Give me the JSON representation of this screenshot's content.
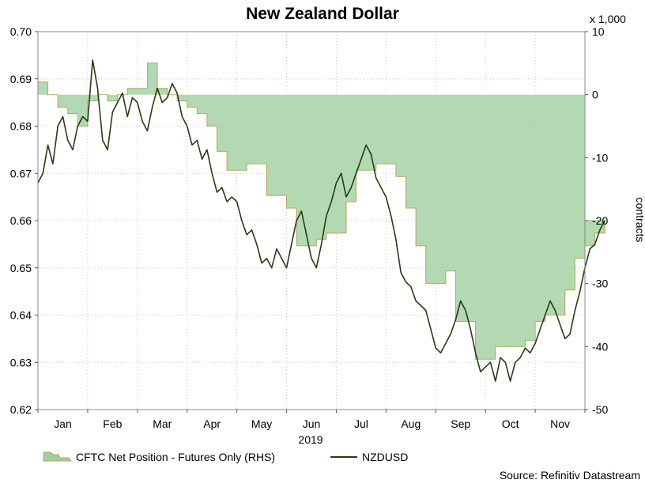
{
  "chart_data": {
    "type": "line",
    "title": "New Zealand Dollar",
    "year_label": "2019",
    "x_categories": [
      "Jan",
      "Feb",
      "Mar",
      "Apr",
      "May",
      "Jun",
      "Jul",
      "Aug",
      "Sep",
      "Oct",
      "Nov"
    ],
    "y_left": {
      "label": "",
      "ylim": [
        0.62,
        0.7
      ],
      "ticks": [
        "0.70",
        "0.69",
        "0.68",
        "0.67",
        "0.66",
        "0.65",
        "0.64",
        "0.63",
        "0.62"
      ]
    },
    "y_right": {
      "label": "contracts",
      "multiplier_label": "x 1,000",
      "ylim": [
        -50,
        10
      ],
      "ticks": [
        "10",
        "0",
        "-10",
        "-20",
        "-30",
        "-40",
        "-50"
      ]
    },
    "grid": true,
    "legend_position": "bottom-left",
    "source": "Source: Refinitiv Datastream",
    "series": [
      {
        "name": "CFTC Net Position - Futures Only (RHS)",
        "axis": "right",
        "chart_type": "area-step",
        "color": "#9fcf9f",
        "edge_color": "#b4a85a",
        "x": [
          0,
          0.2,
          0.4,
          0.6,
          0.8,
          1.0,
          1.2,
          1.4,
          1.6,
          1.8,
          2.0,
          2.2,
          2.4,
          2.6,
          2.8,
          3.0,
          3.2,
          3.4,
          3.6,
          3.8,
          4.0,
          4.2,
          4.4,
          4.6,
          4.8,
          5.0,
          5.2,
          5.4,
          5.6,
          5.8,
          6.0,
          6.2,
          6.4,
          6.6,
          6.8,
          7.0,
          7.2,
          7.4,
          7.6,
          7.8,
          8.0,
          8.2,
          8.4,
          8.6,
          8.8,
          9.0,
          9.2,
          9.4,
          9.6,
          9.8,
          10.0,
          10.2,
          10.4,
          10.6,
          10.8,
          11.0,
          11.2,
          11.4
        ],
        "values": [
          2,
          0,
          -2,
          -3,
          -5,
          -1,
          0,
          -1,
          0,
          1,
          1,
          5,
          1,
          0,
          -1,
          -2,
          -3,
          -5,
          -9,
          -12,
          -12,
          -11,
          -11,
          -16,
          -16,
          -18,
          -24,
          -24,
          -23,
          -22,
          -22,
          -17,
          -12,
          -12,
          -11,
          -11,
          -13,
          -18,
          -24,
          -30,
          -30,
          -28,
          -36,
          -36,
          -42,
          -42,
          -40,
          -40,
          -40,
          -39,
          -36,
          -35,
          -35,
          -31,
          -26,
          -24,
          -22,
          -20
        ]
      },
      {
        "name": "NZDUSD",
        "axis": "left",
        "chart_type": "line",
        "color": "#2b3a12",
        "x": [
          0,
          0.1,
          0.2,
          0.3,
          0.4,
          0.5,
          0.6,
          0.7,
          0.8,
          0.9,
          1.0,
          1.1,
          1.2,
          1.3,
          1.4,
          1.5,
          1.6,
          1.7,
          1.8,
          1.9,
          2.0,
          2.1,
          2.2,
          2.3,
          2.4,
          2.5,
          2.6,
          2.7,
          2.8,
          2.9,
          3.0,
          3.1,
          3.2,
          3.3,
          3.4,
          3.5,
          3.6,
          3.7,
          3.8,
          3.9,
          4.0,
          4.1,
          4.2,
          4.3,
          4.4,
          4.5,
          4.6,
          4.7,
          4.8,
          4.9,
          5.0,
          5.1,
          5.2,
          5.3,
          5.4,
          5.5,
          5.6,
          5.7,
          5.8,
          5.9,
          6.0,
          6.1,
          6.2,
          6.3,
          6.4,
          6.5,
          6.6,
          6.7,
          6.8,
          6.9,
          7.0,
          7.1,
          7.2,
          7.3,
          7.4,
          7.5,
          7.6,
          7.7,
          7.8,
          7.9,
          8.0,
          8.1,
          8.2,
          8.3,
          8.4,
          8.5,
          8.6,
          8.7,
          8.8,
          8.9,
          9.0,
          9.1,
          9.2,
          9.3,
          9.4,
          9.5,
          9.6,
          9.7,
          9.8,
          9.9,
          10.0,
          10.1,
          10.2,
          10.3,
          10.4,
          10.5,
          10.6,
          10.7,
          10.8,
          10.9,
          11.0,
          11.1,
          11.2,
          11.3,
          11.4
        ],
        "values": [
          0.668,
          0.67,
          0.676,
          0.672,
          0.68,
          0.682,
          0.677,
          0.675,
          0.68,
          0.682,
          0.681,
          0.694,
          0.688,
          0.677,
          0.675,
          0.683,
          0.685,
          0.687,
          0.682,
          0.686,
          0.685,
          0.681,
          0.679,
          0.684,
          0.688,
          0.685,
          0.686,
          0.689,
          0.687,
          0.682,
          0.68,
          0.676,
          0.677,
          0.673,
          0.675,
          0.67,
          0.666,
          0.667,
          0.664,
          0.665,
          0.664,
          0.66,
          0.657,
          0.658,
          0.655,
          0.651,
          0.652,
          0.65,
          0.654,
          0.652,
          0.65,
          0.655,
          0.66,
          0.662,
          0.657,
          0.652,
          0.65,
          0.655,
          0.661,
          0.664,
          0.668,
          0.67,
          0.665,
          0.667,
          0.67,
          0.673,
          0.676,
          0.674,
          0.669,
          0.667,
          0.665,
          0.661,
          0.656,
          0.649,
          0.647,
          0.646,
          0.643,
          0.642,
          0.641,
          0.637,
          0.633,
          0.632,
          0.634,
          0.636,
          0.639,
          0.643,
          0.641,
          0.637,
          0.632,
          0.628,
          0.629,
          0.63,
          0.626,
          0.631,
          0.63,
          0.626,
          0.63,
          0.631,
          0.633,
          0.632,
          0.634,
          0.637,
          0.64,
          0.643,
          0.641,
          0.638,
          0.635,
          0.636,
          0.641,
          0.645,
          0.65,
          0.654,
          0.655,
          0.658,
          0.66
        ]
      }
    ]
  }
}
